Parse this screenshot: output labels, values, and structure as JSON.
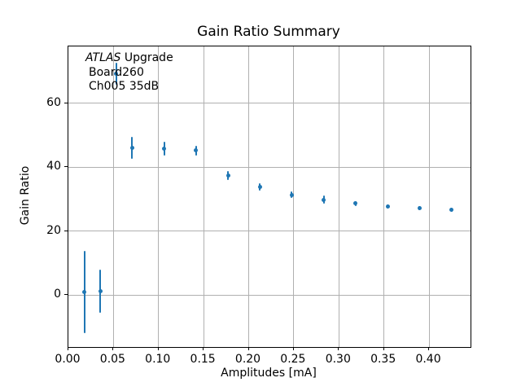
{
  "chart_data": {
    "type": "scatter",
    "title": "Gain Ratio Summary",
    "xlabel": "Amplitudes [mA]",
    "ylabel": "Gain Ratio",
    "xlim": [
      0,
      0.446
    ],
    "ylim": [
      -16.2,
      77.8
    ],
    "xticks": [
      0.0,
      0.05,
      0.1,
      0.15,
      0.2,
      0.25,
      0.3,
      0.35,
      0.4
    ],
    "xtick_labels": [
      "0.00",
      "0.05",
      "0.10",
      "0.15",
      "0.20",
      "0.25",
      "0.30",
      "0.35",
      "0.40"
    ],
    "yticks": [
      0,
      20,
      40,
      60
    ],
    "ytick_labels": [
      "0",
      "20",
      "40",
      "60"
    ],
    "grid": true,
    "legend": "none",
    "marker_style": "circle-with-vertical-error-bars",
    "marker_color": "#1f77b4",
    "grid_color": "#b0b0b0",
    "series": [
      {
        "name": "gain-ratio-vs-amplitude",
        "x": [
          0.0177,
          0.0354,
          0.0531,
          0.0708,
          0.1062,
          0.1416,
          0.177,
          0.2124,
          0.2478,
          0.2832,
          0.3186,
          0.354,
          0.3894,
          0.4248
        ],
        "y": [
          0.9,
          1.3,
          69.2,
          46.0,
          45.8,
          45.2,
          37.4,
          33.8,
          31.4,
          29.9,
          28.7,
          27.8,
          27.2,
          26.6
        ],
        "yerr": [
          12.9,
          6.8,
          3.4,
          3.4,
          2.1,
          1.6,
          1.3,
          1.2,
          1.1,
          1.2,
          0.8,
          0.7,
          0.6,
          0.6
        ]
      }
    ],
    "annotation": {
      "line1_italic": "ATLAS",
      "line1_rest": " Upgrade",
      "line2": "Board260",
      "line3": "Ch005 35dB"
    }
  }
}
